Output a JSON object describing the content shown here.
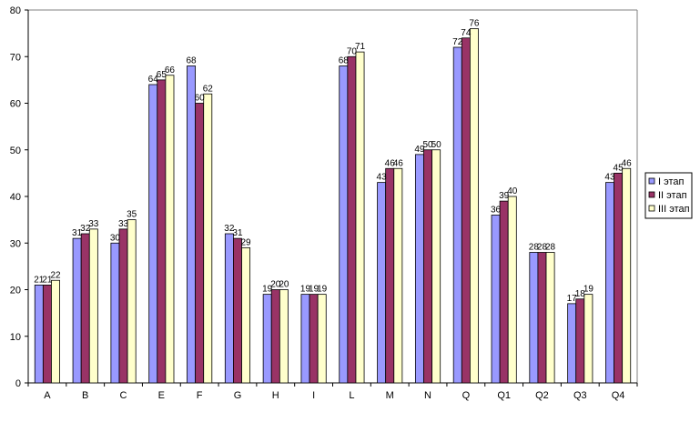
{
  "chart_data": {
    "type": "bar",
    "title": "",
    "xlabel": "",
    "ylabel": "",
    "ylim": [
      0,
      80
    ],
    "y_ticks": [
      0,
      10,
      20,
      30,
      40,
      50,
      60,
      70,
      80
    ],
    "grid": false,
    "legend_position": "right",
    "categories": [
      "A",
      "B",
      "C",
      "E",
      "F",
      "G",
      "H",
      "I",
      "L",
      "M",
      "N",
      "Q",
      "Q1",
      "Q2",
      "Q3",
      "Q4"
    ],
    "series": [
      {
        "name": "I этап",
        "color": "#9999ff",
        "values": [
          21,
          31,
          30,
          64,
          68,
          32,
          19,
          19,
          68,
          43,
          49,
          72,
          36,
          28,
          17,
          43
        ]
      },
      {
        "name": "II этап",
        "color": "#993366",
        "values": [
          21,
          32,
          33,
          65,
          60,
          31,
          20,
          19,
          70,
          46,
          50,
          74,
          39,
          28,
          18,
          45
        ]
      },
      {
        "name": "III этап",
        "color": "#ffffcc",
        "values": [
          22,
          33,
          35,
          66,
          62,
          29,
          20,
          19,
          71,
          46,
          50,
          76,
          40,
          28,
          19,
          46
        ]
      }
    ]
  }
}
